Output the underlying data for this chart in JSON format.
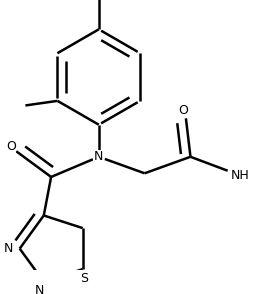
{
  "bg_color": "#ffffff",
  "line_color": "#000000",
  "line_width": 1.8,
  "dbo": 0.018,
  "figsize": [
    2.54,
    2.94
  ],
  "dpi": 100,
  "xlim": [
    0,
    254
  ],
  "ylim": [
    0,
    294
  ]
}
